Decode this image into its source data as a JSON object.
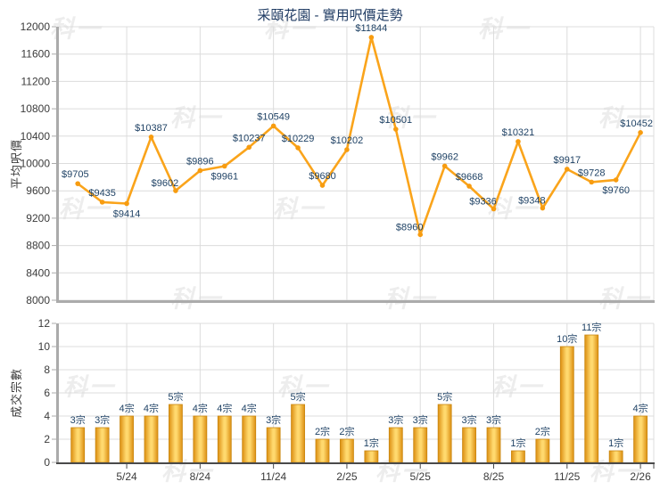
{
  "title": "采頤花園 - 實用呎價走勢",
  "watermark_text": "科一",
  "colors": {
    "line": "#FAA41B",
    "point": "#F79C10",
    "bar_edge": "#DC8F12",
    "bar_center": "#FFD96E",
    "bar_border": "#C9860E",
    "data_label": "#1F4265",
    "axis_text": "#3b3b3b",
    "grid": "#DCDCDC",
    "axis_gray": "#ABABAB",
    "axis_dark": "#4a4a4a",
    "title_text": "#1F3B63",
    "watermark": "#EDEDED",
    "background": "#FFFFFF"
  },
  "x_axis": {
    "tick_labels": [
      "5/24",
      "8/24",
      "11/24",
      "2/25",
      "5/25",
      "8/25",
      "11/25",
      "2/26"
    ],
    "tick_positions": [
      2,
      5,
      8,
      11,
      14,
      17,
      20,
      23
    ],
    "n_slots": 24
  },
  "chart_data": [
    {
      "type": "line",
      "name": "average-price-trend",
      "ylabel": "平均呎價",
      "ylim": [
        8000,
        12000
      ],
      "ytick_step": 400,
      "yticks": [
        "8000",
        "8400",
        "8800",
        "9200",
        "9600",
        "10000",
        "10400",
        "10800",
        "11200",
        "11600",
        "12000"
      ],
      "grid": true,
      "values": [
        9705,
        9435,
        9414,
        10387,
        9602,
        9896,
        9961,
        10237,
        10549,
        10229,
        9680,
        10202,
        11844,
        10501,
        8960,
        9962,
        9668,
        9336,
        10321,
        9348,
        9917,
        9728,
        9760,
        10452
      ],
      "point_labels": [
        "$9705",
        "$9435",
        "$9414",
        "$10387",
        "$9602",
        "$9896",
        "$9961",
        "$10237",
        "$10549",
        "$10229",
        "$9680",
        "$10202",
        "$11844",
        "$10501",
        "$8960",
        "$9962",
        "$9668",
        "$9336",
        "$10321",
        "$9348",
        "$9917",
        "$9728",
        "$9760",
        "$10452"
      ],
      "label_sides": [
        "above",
        "above",
        "below",
        "above",
        "above-left",
        "above",
        "below",
        "above",
        "above",
        "above",
        "above",
        "above",
        "above",
        "above",
        "above-left",
        "above",
        "above",
        "above-left",
        "above",
        "above-left",
        "above",
        "above",
        "below",
        "above"
      ]
    },
    {
      "type": "bar",
      "name": "transaction-count",
      "ylabel": "成交宗數",
      "ylim": [
        0,
        12
      ],
      "ytick_step": 2,
      "yticks": [
        "0",
        "2",
        "4",
        "6",
        "8",
        "10",
        "12"
      ],
      "grid": true,
      "values": [
        3,
        3,
        4,
        4,
        5,
        4,
        4,
        4,
        3,
        5,
        2,
        2,
        1,
        3,
        3,
        5,
        3,
        3,
        1,
        2,
        10,
        11,
        1,
        4
      ],
      "bar_labels": [
        "3宗",
        "3宗",
        "4宗",
        "4宗",
        "5宗",
        "4宗",
        "4宗",
        "4宗",
        "3宗",
        "5宗",
        "2宗",
        "2宗",
        "1宗",
        "3宗",
        "3宗",
        "5宗",
        "3宗",
        "3宗",
        "1宗",
        "2宗",
        "10宗",
        "11宗",
        "1宗",
        "4宗"
      ]
    }
  ]
}
